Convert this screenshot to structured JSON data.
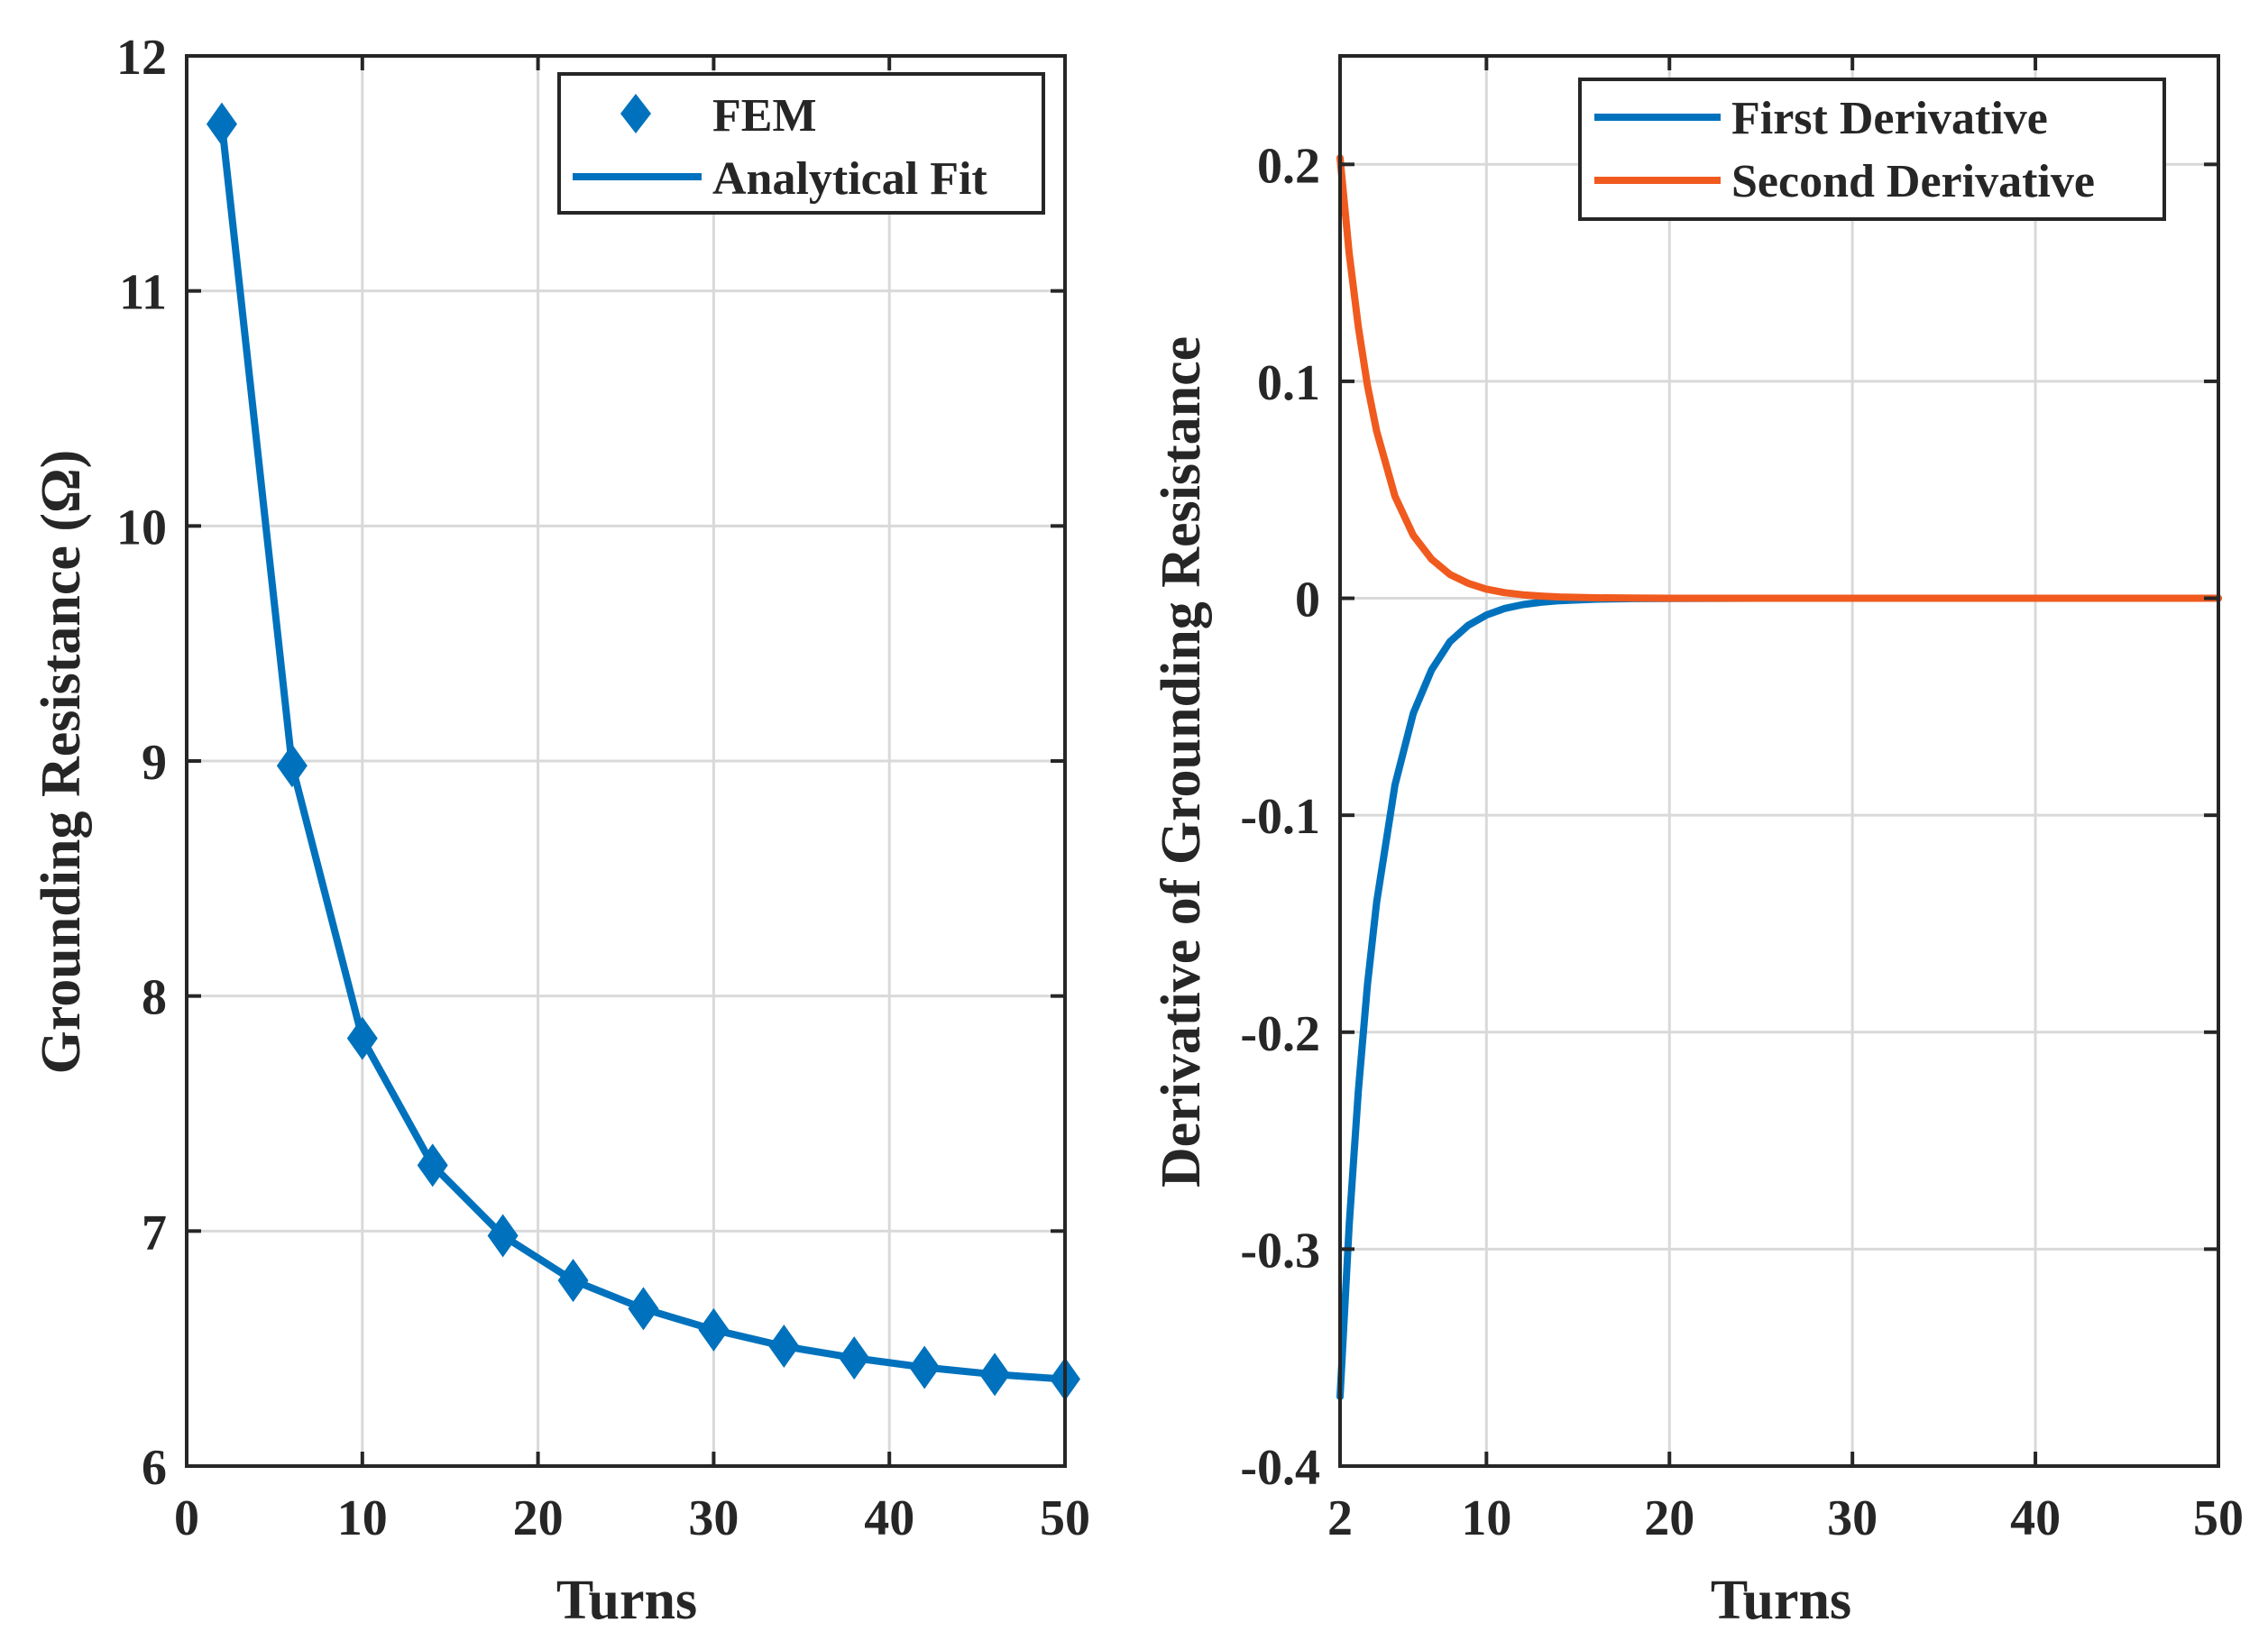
{
  "colors": {
    "blue": "#0072BD",
    "orange": "#F05A1E",
    "grid": "#D9D9D9",
    "axis": "#262626"
  },
  "chart_data": [
    {
      "type": "line",
      "xlabel": "Turns",
      "ylabel": "Grounding Resistance (Ω)",
      "xlim": [
        0,
        50
      ],
      "ylim": [
        6,
        12
      ],
      "xticks": [
        0,
        10,
        20,
        30,
        40,
        50
      ],
      "xtick_labels": [
        "0",
        "10",
        "20",
        "30",
        "40",
        "50"
      ],
      "yticks": [
        6,
        7,
        8,
        9,
        10,
        11,
        12
      ],
      "ytick_labels": [
        "6",
        "7",
        "8",
        "9",
        "10",
        "11",
        "12"
      ],
      "grid": true,
      "legend_position": "top-right",
      "series": [
        {
          "name": "FEM",
          "style": "diamond-markers",
          "color": "#0072BD",
          "x": [
            2,
            6,
            10,
            14,
            18,
            22,
            26,
            30,
            34,
            38,
            42,
            46,
            50
          ],
          "y": [
            11.71,
            8.98,
            7.82,
            7.28,
            6.98,
            6.79,
            6.67,
            6.58,
            6.51,
            6.46,
            6.42,
            6.39,
            6.37
          ]
        },
        {
          "name": "Analytical Fit",
          "style": "line",
          "color": "#0072BD",
          "x": [
            2,
            6,
            10,
            14,
            18,
            22,
            26,
            30,
            34,
            38,
            42,
            46,
            50
          ],
          "y": [
            11.71,
            8.98,
            7.82,
            7.28,
            6.98,
            6.79,
            6.67,
            6.58,
            6.51,
            6.46,
            6.42,
            6.39,
            6.37
          ]
        }
      ]
    },
    {
      "type": "line",
      "xlabel": "Turns",
      "ylabel": "Derivative of Grounding Resistance",
      "xlim": [
        2,
        50
      ],
      "ylim": [
        -0.4,
        0.25
      ],
      "xticks": [
        2,
        10,
        20,
        30,
        40,
        50
      ],
      "xtick_labels": [
        "2",
        "10",
        "20",
        "30",
        "40",
        "50"
      ],
      "yticks": [
        -0.4,
        -0.3,
        -0.2,
        -0.1,
        0,
        0.1,
        0.2
      ],
      "ytick_labels": [
        "-0.4",
        "-0.3",
        "-0.2",
        "-0.1",
        "0",
        "0.1",
        "0.2"
      ],
      "grid": true,
      "legend_position": "top-right",
      "series": [
        {
          "name": "First Derivative",
          "color": "#0072BD",
          "x": [
            2,
            2.5,
            3,
            3.5,
            4,
            5,
            6,
            7,
            8,
            9,
            10,
            11,
            12,
            13,
            14,
            16,
            18,
            20,
            25,
            30,
            35,
            40,
            45,
            50
          ],
          "y": [
            -0.368,
            -0.289,
            -0.227,
            -0.178,
            -0.14,
            -0.086,
            -0.053,
            -0.033,
            -0.02,
            -0.0125,
            -0.0077,
            -0.0047,
            -0.0029,
            -0.0018,
            -0.0011,
            -0.0004,
            -0.00016,
            -6e-05,
            0,
            0,
            0,
            0,
            0,
            0
          ]
        },
        {
          "name": "Second Derivative",
          "color": "#F05A1E",
          "x": [
            2,
            2.5,
            3,
            3.5,
            4,
            5,
            6,
            7,
            8,
            9,
            10,
            11,
            12,
            13,
            14,
            16,
            18,
            20,
            25,
            30,
            35,
            40,
            45,
            50
          ],
          "y": [
            0.203,
            0.159,
            0.125,
            0.098,
            0.077,
            0.047,
            0.029,
            0.018,
            0.011,
            0.0069,
            0.0042,
            0.0026,
            0.0016,
            0.001,
            0.0006,
            0.00023,
            9e-05,
            3e-05,
            0,
            0,
            0,
            0,
            0,
            0
          ]
        }
      ]
    }
  ]
}
